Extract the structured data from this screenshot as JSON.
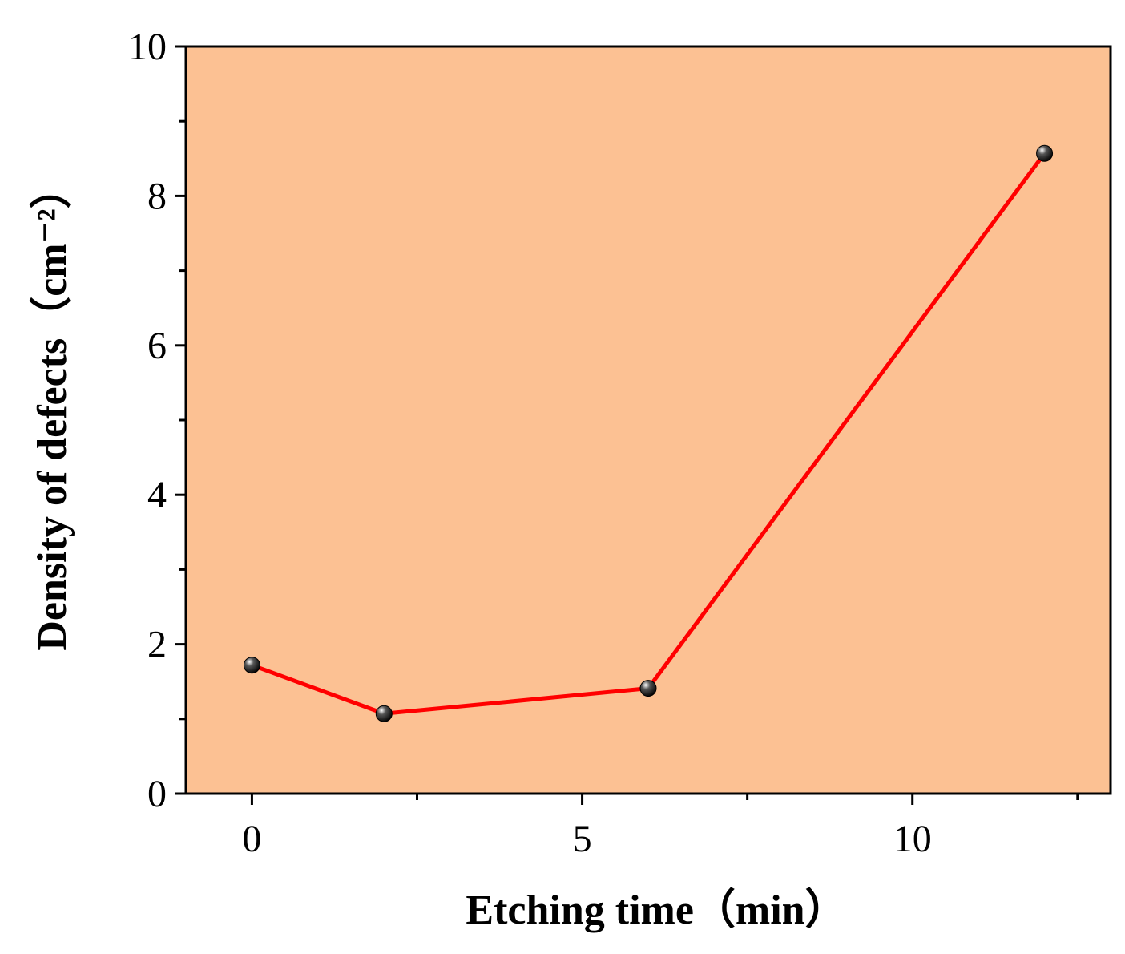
{
  "chart_data": {
    "type": "line",
    "title": "",
    "xlabel": "Etching time（min）",
    "ylabel": "Density of defects（cm⁻²）",
    "xlim": [
      -1,
      13
    ],
    "ylim": [
      0,
      10
    ],
    "x_ticks": [
      0,
      5,
      10
    ],
    "y_ticks": [
      0,
      2,
      4,
      6,
      8,
      10
    ],
    "grid": false,
    "legend": "none",
    "background_color": "#fcc193",
    "line_color": "#ff0000",
    "marker_color": "#000000",
    "series": [
      {
        "x": [
          0,
          2,
          6,
          12
        ],
        "y": [
          1.72,
          1.07,
          1.41,
          8.57
        ]
      }
    ]
  }
}
